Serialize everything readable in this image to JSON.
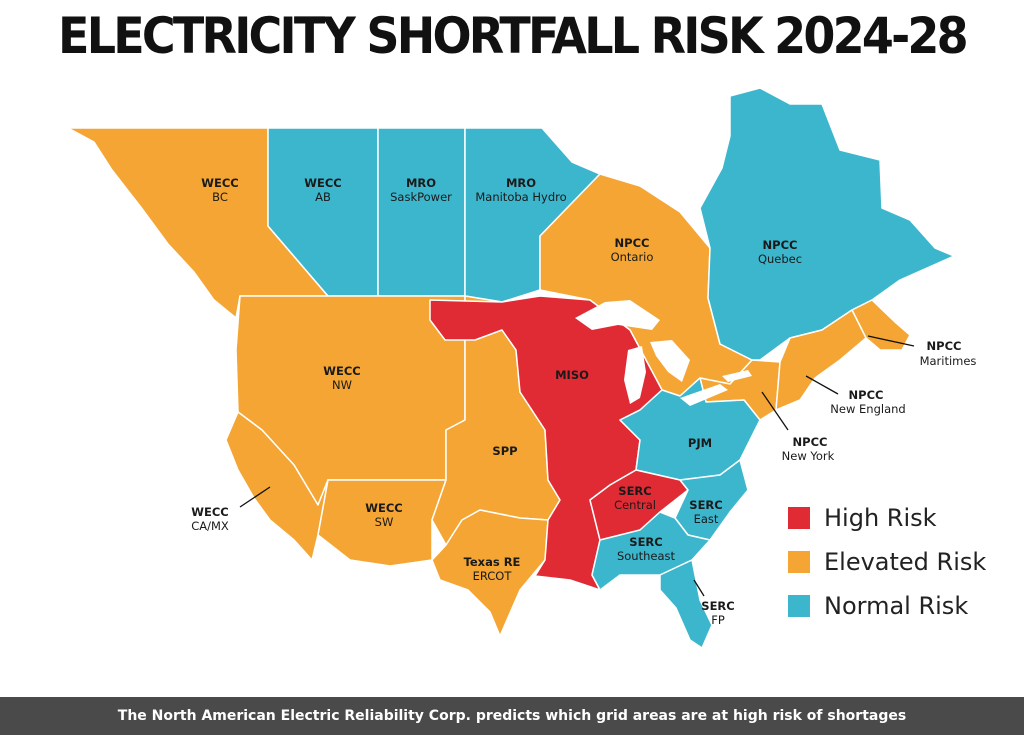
{
  "title": "ELECTRICITY SHORTFALL RISK 2024-28",
  "colors": {
    "high": "#e02b35",
    "elevated": "#f4a533",
    "normal": "#3cb6cc",
    "border": "#ffffff",
    "lake": "#ffffff"
  },
  "regions": {
    "wecc_bc": {
      "code": "WECC",
      "name": "BC",
      "risk": "elevated"
    },
    "wecc_ab": {
      "code": "WECC",
      "name": "AB",
      "risk": "normal"
    },
    "mro_sask": {
      "code": "MRO",
      "name": "SaskPower",
      "risk": "normal"
    },
    "mro_manitoba": {
      "code": "MRO",
      "name": "Manitoba Hydro",
      "risk": "normal"
    },
    "npcc_ontario": {
      "code": "NPCC",
      "name": "Ontario",
      "risk": "elevated"
    },
    "npcc_quebec": {
      "code": "NPCC",
      "name": "Quebec",
      "risk": "normal"
    },
    "npcc_maritimes": {
      "code": "NPCC",
      "name": "Maritimes",
      "risk": "elevated"
    },
    "npcc_new_england": {
      "code": "NPCC",
      "name": "New England",
      "risk": "elevated"
    },
    "npcc_new_york": {
      "code": "NPCC",
      "name": "New York",
      "risk": "elevated"
    },
    "wecc_nw": {
      "code": "WECC",
      "name": "NW",
      "risk": "elevated"
    },
    "wecc_camx": {
      "code": "WECC",
      "name": "CA/MX",
      "risk": "elevated"
    },
    "wecc_sw": {
      "code": "WECC",
      "name": "SW",
      "risk": "elevated"
    },
    "spp": {
      "code": "SPP",
      "name": "",
      "risk": "elevated"
    },
    "texas_re": {
      "code": "Texas RE",
      "name": "ERCOT",
      "risk": "elevated"
    },
    "miso": {
      "code": "MISO",
      "name": "",
      "risk": "high"
    },
    "pjm": {
      "code": "PJM",
      "name": "",
      "risk": "normal"
    },
    "serc_central": {
      "code": "SERC",
      "name": "Central",
      "risk": "high"
    },
    "serc_east": {
      "code": "SERC",
      "name": "East",
      "risk": "normal"
    },
    "serc_southeast": {
      "code": "SERC",
      "name": "Southeast",
      "risk": "normal"
    },
    "serc_fp": {
      "code": "SERC",
      "name": "FP",
      "risk": "normal"
    }
  },
  "legend": [
    {
      "label": "High Risk",
      "risk": "high"
    },
    {
      "label": "Elevated Risk",
      "risk": "elevated"
    },
    {
      "label": "Normal Risk",
      "risk": "normal"
    }
  ],
  "caption": "The North American Electric Reliability Corp. predicts which grid areas are at high risk of shortages"
}
